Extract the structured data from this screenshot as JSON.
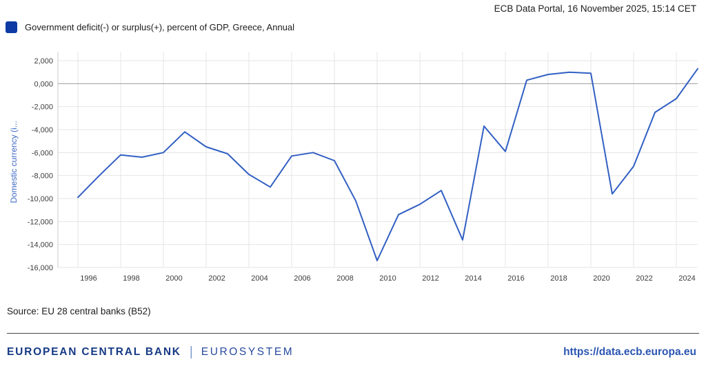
{
  "header": {
    "title": "ECB Data Portal, 16 November 2025, 15:14 CET"
  },
  "legend": {
    "label": "Government deficit(-) or surplus(+), percent of GDP, Greece, Annual",
    "swatch_color": "#0d3aa4"
  },
  "chart_data": {
    "type": "line",
    "title": "Government deficit(-) or surplus(+), percent of GDP, Greece, Annual",
    "series": [
      {
        "name": "Government deficit(-) or surplus(+), percent of GDP, Greece, Annual",
        "values": [
          -9.9,
          -8.0,
          -6.2,
          -6.4,
          -6.0,
          -4.2,
          -5.5,
          -6.1,
          -7.9,
          -9.0,
          -6.3,
          -6.0,
          -6.7,
          -10.2,
          -15.4,
          -11.4,
          -10.5,
          -9.3,
          -13.6,
          -3.7,
          -5.9,
          0.3,
          0.8,
          1.0,
          0.9,
          -9.6,
          -7.2,
          -2.5,
          -1.3,
          1.3
        ]
      }
    ],
    "x": [
      1995,
      1996,
      1997,
      1998,
      1999,
      2000,
      2001,
      2002,
      2003,
      2004,
      2005,
      2006,
      2007,
      2008,
      2009,
      2010,
      2011,
      2012,
      2013,
      2014,
      2015,
      2016,
      2017,
      2018,
      2019,
      2020,
      2021,
      2022,
      2023,
      2024
    ],
    "xlabel": "",
    "ylabel": "Domestic currency (i...",
    "x_ticks": [
      1996,
      1998,
      2000,
      2002,
      2004,
      2006,
      2008,
      2010,
      2012,
      2014,
      2016,
      2018,
      2020,
      2022,
      2024
    ],
    "y_tick_labels": [
      "2,000",
      "0,000",
      "-2,000",
      "-4,000",
      "-6,000",
      "-8,000",
      "-10,000",
      "-12,000",
      "-14,000",
      "-16,000"
    ],
    "y_tick_values": [
      2,
      0,
      -2,
      -4,
      -6,
      -8,
      -10,
      -12,
      -14,
      -16
    ],
    "ylim": [
      -16,
      2
    ],
    "grid": true,
    "legend_position": "top-left",
    "line_color": "#315fc2",
    "zero_line_color": "#9b9b9b",
    "grid_color": "#e5e5e5",
    "axis_line_color": "#c9c9c9",
    "tick_label_color": "#3c3c3c",
    "axis_title_color": "#3f6bc3"
  },
  "source": {
    "text": "Source: EU 28 central banks (B52)"
  },
  "footer": {
    "brand": "EUROPEAN CENTRAL BANK",
    "separator": "|",
    "subbrand": "EUROSYSTEM",
    "url": "https://data.ecb.europa.eu"
  }
}
